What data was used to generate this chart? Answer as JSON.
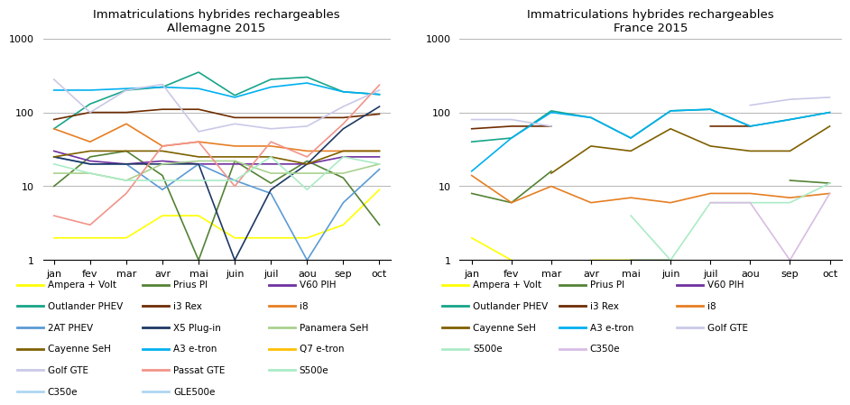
{
  "months": [
    "jan",
    "fev",
    "mar",
    "avr",
    "mai",
    "juin",
    "juil",
    "aou",
    "sep",
    "oct"
  ],
  "title_de": "Immatriculations hybrides rechargeables\nAllemagne 2015",
  "title_fr": "Immatriculations hybrides rechargeables\nFrance 2015",
  "germany_series": [
    {
      "name": "Ampera + Volt",
      "color": "#FFFF00",
      "values": [
        2,
        2,
        2,
        4,
        4,
        2,
        2,
        2,
        3,
        9
      ]
    },
    {
      "name": "Prius PI",
      "color": "#548235",
      "values": [
        10,
        25,
        30,
        14,
        1,
        22,
        11,
        22,
        13,
        3
      ]
    },
    {
      "name": "V60 PIH",
      "color": "#7030A0",
      "values": [
        30,
        22,
        20,
        22,
        20,
        20,
        20,
        20,
        25,
        25
      ]
    },
    {
      "name": "Outlander PHEV",
      "color": "#17A589",
      "values": [
        60,
        130,
        200,
        220,
        350,
        170,
        280,
        300,
        190,
        175
      ]
    },
    {
      "name": "i3 Rex",
      "color": "#6E2C00",
      "values": [
        80,
        100,
        100,
        110,
        110,
        85,
        85,
        85,
        85,
        95
      ]
    },
    {
      "name": "i8",
      "color": "#E67E22",
      "values": [
        60,
        40,
        70,
        35,
        40,
        35,
        35,
        30,
        30,
        30
      ]
    },
    {
      "name": "2AT PHEV",
      "color": "#5B9BD5",
      "values": [
        25,
        20,
        20,
        9,
        20,
        12,
        8,
        1,
        6,
        17
      ]
    },
    {
      "name": "X5 Plug-in",
      "color": "#1F3864",
      "values": [
        25,
        20,
        20,
        20,
        20,
        1,
        9,
        20,
        60,
        120
      ]
    },
    {
      "name": "Panamera SeH",
      "color": "#A9D18E",
      "values": [
        15,
        15,
        12,
        20,
        22,
        22,
        15,
        15,
        15,
        20
      ]
    },
    {
      "name": "Cayenne SeH",
      "color": "#7F6000",
      "values": [
        25,
        30,
        30,
        30,
        25,
        25,
        25,
        20,
        30,
        30
      ]
    },
    {
      "name": "A3 e-tron",
      "color": "#00B0F0",
      "values": [
        200,
        200,
        210,
        220,
        210,
        160,
        220,
        250,
        190,
        175
      ]
    },
    {
      "name": "Q7 e-tron",
      "color": "#FFC000",
      "values": [
        null,
        null,
        null,
        null,
        null,
        null,
        null,
        null,
        null,
        null
      ]
    },
    {
      "name": "Golf GTE",
      "color": "#C9C9E8",
      "values": [
        280,
        100,
        200,
        240,
        55,
        70,
        60,
        65,
        120,
        200
      ]
    },
    {
      "name": "Passat GTE",
      "color": "#F1948A",
      "values": [
        4,
        3,
        8,
        35,
        40,
        10,
        40,
        25,
        70,
        235
      ]
    },
    {
      "name": "S500e",
      "color": "#ABEBC6",
      "values": [
        20,
        15,
        12,
        12,
        12,
        12,
        25,
        9,
        25,
        20
      ]
    },
    {
      "name": "C350e",
      "color": "#AED6F1",
      "values": [
        null,
        null,
        null,
        null,
        null,
        null,
        null,
        null,
        null,
        null
      ]
    },
    {
      "name": "GLE500e",
      "color": "#AED6F1",
      "values": [
        null,
        null,
        null,
        null,
        null,
        null,
        null,
        null,
        null,
        null
      ]
    }
  ],
  "france_series": [
    {
      "name": "Ampera + Volt",
      "color": "#FFFF00",
      "values": [
        2,
        1,
        null,
        1,
        1,
        null,
        null,
        null,
        null,
        null
      ]
    },
    {
      "name": "Prius PI",
      "color": "#548235",
      "values": [
        8,
        6,
        16,
        null,
        1,
        1,
        null,
        null,
        12,
        11
      ]
    },
    {
      "name": "V60 PIH",
      "color": "#7030A0",
      "values": [
        null,
        null,
        null,
        null,
        null,
        null,
        null,
        null,
        null,
        null
      ]
    },
    {
      "name": "Outlander PHEV",
      "color": "#17A589",
      "values": [
        40,
        45,
        105,
        85,
        45,
        105,
        110,
        65,
        80,
        100
      ]
    },
    {
      "name": "i3 Rex",
      "color": "#6E2C00",
      "values": [
        60,
        65,
        65,
        null,
        null,
        null,
        65,
        65,
        null,
        65
      ]
    },
    {
      "name": "i8",
      "color": "#E67E22",
      "values": [
        14,
        6,
        10,
        6,
        7,
        6,
        8,
        8,
        7,
        8
      ]
    },
    {
      "name": "Cayenne SeH",
      "color": "#7F6000",
      "values": [
        null,
        null,
        15,
        35,
        30,
        60,
        35,
        30,
        30,
        65
      ]
    },
    {
      "name": "A3 e-tron",
      "color": "#00B0F0",
      "values": [
        16,
        45,
        100,
        85,
        45,
        105,
        110,
        65,
        80,
        100
      ]
    },
    {
      "name": "Golf GTE",
      "color": "#C9C9E8",
      "values": [
        80,
        80,
        65,
        null,
        null,
        null,
        null,
        125,
        150,
        160
      ]
    },
    {
      "name": "S500e",
      "color": "#ABEBC6",
      "values": [
        null,
        null,
        null,
        null,
        4,
        1,
        6,
        6,
        6,
        11
      ]
    },
    {
      "name": "C350e",
      "color": "#D7BDE2",
      "values": [
        null,
        null,
        null,
        null,
        null,
        null,
        6,
        6,
        1,
        8
      ]
    }
  ],
  "de_legend": [
    [
      "Ampera + Volt",
      "#FFFF00"
    ],
    [
      "Prius PI",
      "#548235"
    ],
    [
      "V60 PIH",
      "#7030A0"
    ],
    [
      "Outlander PHEV",
      "#17A589"
    ],
    [
      "i3 Rex",
      "#6E2C00"
    ],
    [
      "i8",
      "#E67E22"
    ],
    [
      "2AT PHEV",
      "#5B9BD5"
    ],
    [
      "X5 Plug-in",
      "#1F3864"
    ],
    [
      "Panamera SeH",
      "#A9D18E"
    ],
    [
      "Cayenne SeH",
      "#7F6000"
    ],
    [
      "A3 e-tron",
      "#00B0F0"
    ],
    [
      "Q7 e-tron",
      "#FFC000"
    ],
    [
      "Golf GTE",
      "#C9C9E8"
    ],
    [
      "Passat GTE",
      "#F1948A"
    ],
    [
      "S500e",
      "#ABEBC6"
    ],
    [
      "C350e",
      "#AED6F1"
    ],
    [
      "GLE500e",
      "#AED6F1"
    ]
  ],
  "fr_legend": [
    [
      "Ampera + Volt",
      "#FFFF00"
    ],
    [
      "Prius PI",
      "#548235"
    ],
    [
      "V60 PIH",
      "#7030A0"
    ],
    [
      "Outlander PHEV",
      "#17A589"
    ],
    [
      "i3 Rex",
      "#6E2C00"
    ],
    [
      "i8",
      "#E67E22"
    ],
    [
      "Cayenne SeH",
      "#7F6000"
    ],
    [
      "A3 e-tron",
      "#00B0F0"
    ],
    [
      "Golf GTE",
      "#C9C9E8"
    ],
    [
      "S500e",
      "#ABEBC6"
    ],
    [
      "C350e",
      "#D7BDE2"
    ]
  ]
}
